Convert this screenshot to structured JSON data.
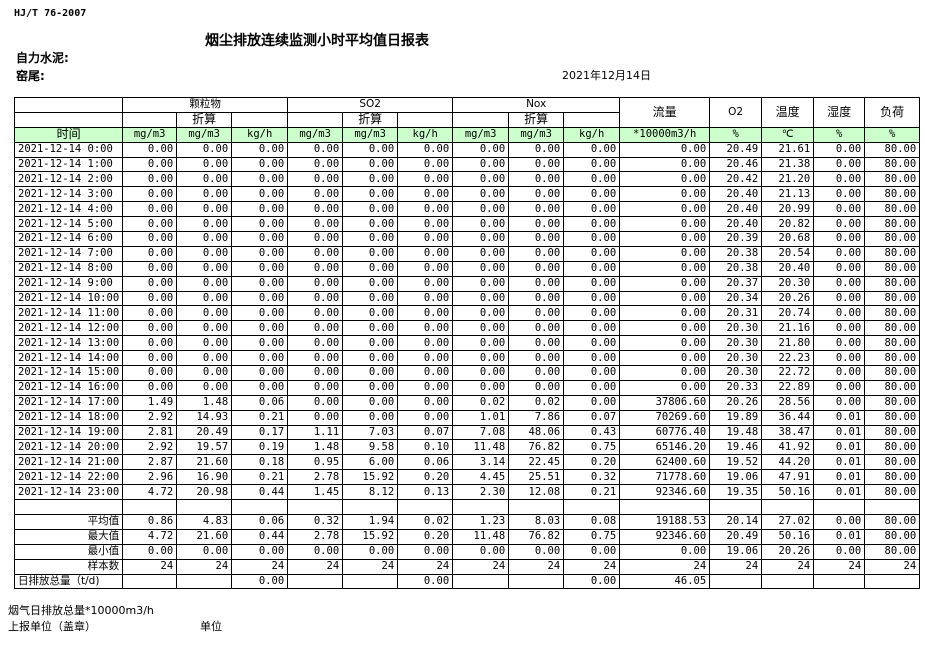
{
  "header": {
    "standard": "HJ/T  76-2007",
    "title": "烟尘排放连续监测小时平均值日报表",
    "company": "自力水泥:",
    "kiln": "窑尾:",
    "date": "2021年12月14日"
  },
  "columns": {
    "particulate": "颗粒物",
    "so2": "SO2",
    "nox": "Nox",
    "converted": "折算",
    "flow": "流量",
    "o2": "O2",
    "temp": "温度",
    "humidity": "湿度",
    "load": "负荷",
    "time": "时间",
    "units": [
      "mg/m3",
      "mg/m3",
      "kg/h",
      "mg/m3",
      "mg/m3",
      "kg/h",
      "mg/m3",
      "mg/m3",
      "kg/h",
      "*10000m3/h",
      "%",
      "℃",
      "%",
      "%"
    ]
  },
  "rows": [
    [
      "2021-12-14 0:00",
      "0.00",
      "0.00",
      "0.00",
      "0.00",
      "0.00",
      "0.00",
      "0.00",
      "0.00",
      "0.00",
      "0.00",
      "20.49",
      "21.61",
      "0.00",
      "80.00"
    ],
    [
      "2021-12-14 1:00",
      "0.00",
      "0.00",
      "0.00",
      "0.00",
      "0.00",
      "0.00",
      "0.00",
      "0.00",
      "0.00",
      "0.00",
      "20.46",
      "21.38",
      "0.00",
      "80.00"
    ],
    [
      "2021-12-14 2:00",
      "0.00",
      "0.00",
      "0.00",
      "0.00",
      "0.00",
      "0.00",
      "0.00",
      "0.00",
      "0.00",
      "0.00",
      "20.42",
      "21.20",
      "0.00",
      "80.00"
    ],
    [
      "2021-12-14 3:00",
      "0.00",
      "0.00",
      "0.00",
      "0.00",
      "0.00",
      "0.00",
      "0.00",
      "0.00",
      "0.00",
      "0.00",
      "20.40",
      "21.13",
      "0.00",
      "80.00"
    ],
    [
      "2021-12-14 4:00",
      "0.00",
      "0.00",
      "0.00",
      "0.00",
      "0.00",
      "0.00",
      "0.00",
      "0.00",
      "0.00",
      "0.00",
      "20.40",
      "20.99",
      "0.00",
      "80.00"
    ],
    [
      "2021-12-14 5:00",
      "0.00",
      "0.00",
      "0.00",
      "0.00",
      "0.00",
      "0.00",
      "0.00",
      "0.00",
      "0.00",
      "0.00",
      "20.40",
      "20.82",
      "0.00",
      "80.00"
    ],
    [
      "2021-12-14 6:00",
      "0.00",
      "0.00",
      "0.00",
      "0.00",
      "0.00",
      "0.00",
      "0.00",
      "0.00",
      "0.00",
      "0.00",
      "20.39",
      "20.68",
      "0.00",
      "80.00"
    ],
    [
      "2021-12-14 7:00",
      "0.00",
      "0.00",
      "0.00",
      "0.00",
      "0.00",
      "0.00",
      "0.00",
      "0.00",
      "0.00",
      "0.00",
      "20.38",
      "20.54",
      "0.00",
      "80.00"
    ],
    [
      "2021-12-14 8:00",
      "0.00",
      "0.00",
      "0.00",
      "0.00",
      "0.00",
      "0.00",
      "0.00",
      "0.00",
      "0.00",
      "0.00",
      "20.38",
      "20.40",
      "0.00",
      "80.00"
    ],
    [
      "2021-12-14 9:00",
      "0.00",
      "0.00",
      "0.00",
      "0.00",
      "0.00",
      "0.00",
      "0.00",
      "0.00",
      "0.00",
      "0.00",
      "20.37",
      "20.30",
      "0.00",
      "80.00"
    ],
    [
      "2021-12-14 10:00",
      "0.00",
      "0.00",
      "0.00",
      "0.00",
      "0.00",
      "0.00",
      "0.00",
      "0.00",
      "0.00",
      "0.00",
      "20.34",
      "20.26",
      "0.00",
      "80.00"
    ],
    [
      "2021-12-14 11:00",
      "0.00",
      "0.00",
      "0.00",
      "0.00",
      "0.00",
      "0.00",
      "0.00",
      "0.00",
      "0.00",
      "0.00",
      "20.31",
      "20.74",
      "0.00",
      "80.00"
    ],
    [
      "2021-12-14 12:00",
      "0.00",
      "0.00",
      "0.00",
      "0.00",
      "0.00",
      "0.00",
      "0.00",
      "0.00",
      "0.00",
      "0.00",
      "20.30",
      "21.16",
      "0.00",
      "80.00"
    ],
    [
      "2021-12-14 13:00",
      "0.00",
      "0.00",
      "0.00",
      "0.00",
      "0.00",
      "0.00",
      "0.00",
      "0.00",
      "0.00",
      "0.00",
      "20.30",
      "21.80",
      "0.00",
      "80.00"
    ],
    [
      "2021-12-14 14:00",
      "0.00",
      "0.00",
      "0.00",
      "0.00",
      "0.00",
      "0.00",
      "0.00",
      "0.00",
      "0.00",
      "0.00",
      "20.30",
      "22.23",
      "0.00",
      "80.00"
    ],
    [
      "2021-12-14 15:00",
      "0.00",
      "0.00",
      "0.00",
      "0.00",
      "0.00",
      "0.00",
      "0.00",
      "0.00",
      "0.00",
      "0.00",
      "20.30",
      "22.72",
      "0.00",
      "80.00"
    ],
    [
      "2021-12-14 16:00",
      "0.00",
      "0.00",
      "0.00",
      "0.00",
      "0.00",
      "0.00",
      "0.00",
      "0.00",
      "0.00",
      "0.00",
      "20.33",
      "22.89",
      "0.00",
      "80.00"
    ],
    [
      "2021-12-14 17:00",
      "1.49",
      "1.48",
      "0.06",
      "0.00",
      "0.00",
      "0.00",
      "0.02",
      "0.02",
      "0.00",
      "37806.60",
      "20.26",
      "28.56",
      "0.00",
      "80.00"
    ],
    [
      "2021-12-14 18:00",
      "2.92",
      "14.93",
      "0.21",
      "0.00",
      "0.00",
      "0.00",
      "1.01",
      "7.86",
      "0.07",
      "70269.60",
      "19.89",
      "36.44",
      "0.01",
      "80.00"
    ],
    [
      "2021-12-14 19:00",
      "2.81",
      "20.49",
      "0.17",
      "1.11",
      "7.03",
      "0.07",
      "7.08",
      "48.06",
      "0.43",
      "60776.40",
      "19.48",
      "38.47",
      "0.01",
      "80.00"
    ],
    [
      "2021-12-14 20:00",
      "2.92",
      "19.57",
      "0.19",
      "1.48",
      "9.58",
      "0.10",
      "11.48",
      "76.82",
      "0.75",
      "65146.20",
      "19.46",
      "41.92",
      "0.01",
      "80.00"
    ],
    [
      "2021-12-14 21:00",
      "2.87",
      "21.60",
      "0.18",
      "0.95",
      "6.00",
      "0.06",
      "3.14",
      "22.45",
      "0.20",
      "62400.60",
      "19.52",
      "44.20",
      "0.01",
      "80.00"
    ],
    [
      "2021-12-14 22:00",
      "2.96",
      "16.90",
      "0.21",
      "2.78",
      "15.92",
      "0.20",
      "4.45",
      "25.51",
      "0.32",
      "71778.60",
      "19.06",
      "47.91",
      "0.01",
      "80.00"
    ],
    [
      "2021-12-14 23:00",
      "4.72",
      "20.98",
      "0.44",
      "1.45",
      "8.12",
      "0.13",
      "2.30",
      "12.08",
      "0.21",
      "92346.60",
      "19.35",
      "50.16",
      "0.01",
      "80.00"
    ]
  ],
  "stats": [
    [
      "平均值",
      "0.86",
      "4.83",
      "0.06",
      "0.32",
      "1.94",
      "0.02",
      "1.23",
      "8.03",
      "0.08",
      "19188.53",
      "20.14",
      "27.02",
      "0.00",
      "80.00"
    ],
    [
      "最大值",
      "4.72",
      "21.60",
      "0.44",
      "2.78",
      "15.92",
      "0.20",
      "11.48",
      "76.82",
      "0.75",
      "92346.60",
      "20.49",
      "50.16",
      "0.01",
      "80.00"
    ],
    [
      "最小值",
      "0.00",
      "0.00",
      "0.00",
      "0.00",
      "0.00",
      "0.00",
      "0.00",
      "0.00",
      "0.00",
      "0.00",
      "19.06",
      "20.26",
      "0.00",
      "80.00"
    ],
    [
      "样本数",
      "24",
      "24",
      "24",
      "24",
      "24",
      "24",
      "24",
      "24",
      "24",
      "24",
      "24",
      "24",
      "24",
      "24"
    ],
    [
      "日排放总量（t/d)",
      "",
      "",
      "0.00",
      "",
      "",
      "0.00",
      "",
      "",
      "0.00",
      "46.05",
      "",
      "",
      "",
      ""
    ]
  ],
  "footer": {
    "flow_total": "烟气日排放总量*10000m3/h",
    "reporter": "上报单位（盖章）",
    "unit": "单位"
  },
  "colors": {
    "header_row_bg": "#ccffcc"
  }
}
